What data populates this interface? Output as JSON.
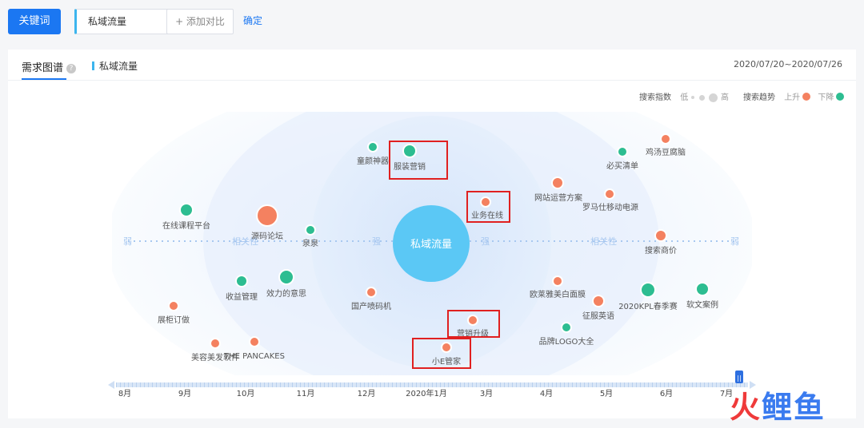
{
  "toolbar": {
    "keyword_button": "关键词",
    "keyword_value": "私域流量",
    "add_compare": "+ 添加对比",
    "confirm": "确定"
  },
  "tabs": {
    "main": "需求图谱",
    "help": "?",
    "keyword": "私域流量"
  },
  "date_range": "2020/07/20~2020/07/26",
  "legend": {
    "search_index": "搜索指数",
    "low": "低",
    "high": "高",
    "search_trend": "搜索趋势",
    "up": "上升",
    "down": "下降"
  },
  "colors": {
    "up": "#f48160",
    "down": "#2dbd91",
    "center": "#5bc8f5",
    "accent": "#1b77f2",
    "highlight_box": "#e02020"
  },
  "center_label": "私域流量",
  "axis_labels": {
    "weak": "弱",
    "relevance": "相关性",
    "strong": "强"
  },
  "nodes": [
    {
      "label": "童颜神器",
      "trend": "down",
      "highlight": false
    },
    {
      "label": "服装营销",
      "trend": "down",
      "highlight": true
    },
    {
      "label": "业务在线",
      "trend": "up",
      "highlight": true
    },
    {
      "label": "鸡汤豆腐脑",
      "trend": "up",
      "highlight": false
    },
    {
      "label": "必买清单",
      "trend": "down",
      "highlight": false
    },
    {
      "label": "网站运营方案",
      "trend": "up",
      "highlight": false
    },
    {
      "label": "罗马仕移动电源",
      "trend": "up",
      "highlight": false
    },
    {
      "label": "在线课程平台",
      "trend": "down",
      "highlight": false
    },
    {
      "label": "源码论坛",
      "trend": "up",
      "highlight": false
    },
    {
      "label": "泉泉",
      "trend": "down",
      "highlight": false
    },
    {
      "label": "搜索商价",
      "trend": "up",
      "highlight": false
    },
    {
      "label": "收益管理",
      "trend": "down",
      "highlight": false
    },
    {
      "label": "效力的意思",
      "trend": "down",
      "highlight": false
    },
    {
      "label": "国产喷码机",
      "trend": "up",
      "highlight": false
    },
    {
      "label": "欧莱雅美白面膜",
      "trend": "up",
      "highlight": false
    },
    {
      "label": "2020KPL春季赛",
      "trend": "down",
      "highlight": false
    },
    {
      "label": "软文案例",
      "trend": "down",
      "highlight": false
    },
    {
      "label": "展柜订做",
      "trend": "up",
      "highlight": false
    },
    {
      "label": "征服英语",
      "trend": "up",
      "highlight": false
    },
    {
      "label": "营销升级",
      "trend": "up",
      "highlight": true
    },
    {
      "label": "品牌LOGO大全",
      "trend": "down",
      "highlight": false
    },
    {
      "label": "美容美发软件",
      "trend": "up",
      "highlight": false
    },
    {
      "label": "THE PANCAKES",
      "trend": "up",
      "highlight": false
    },
    {
      "label": "小E管家",
      "trend": "up",
      "highlight": true
    }
  ],
  "timeline": {
    "months": [
      "8月",
      "9月",
      "10月",
      "11月",
      "12月",
      "2020年1月",
      "3月",
      "4月",
      "5月",
      "6月",
      "7月"
    ],
    "handle_symbol": "||"
  },
  "watermark": {
    "part1": "火",
    "part2": "鲤",
    "part3": "鱼"
  }
}
